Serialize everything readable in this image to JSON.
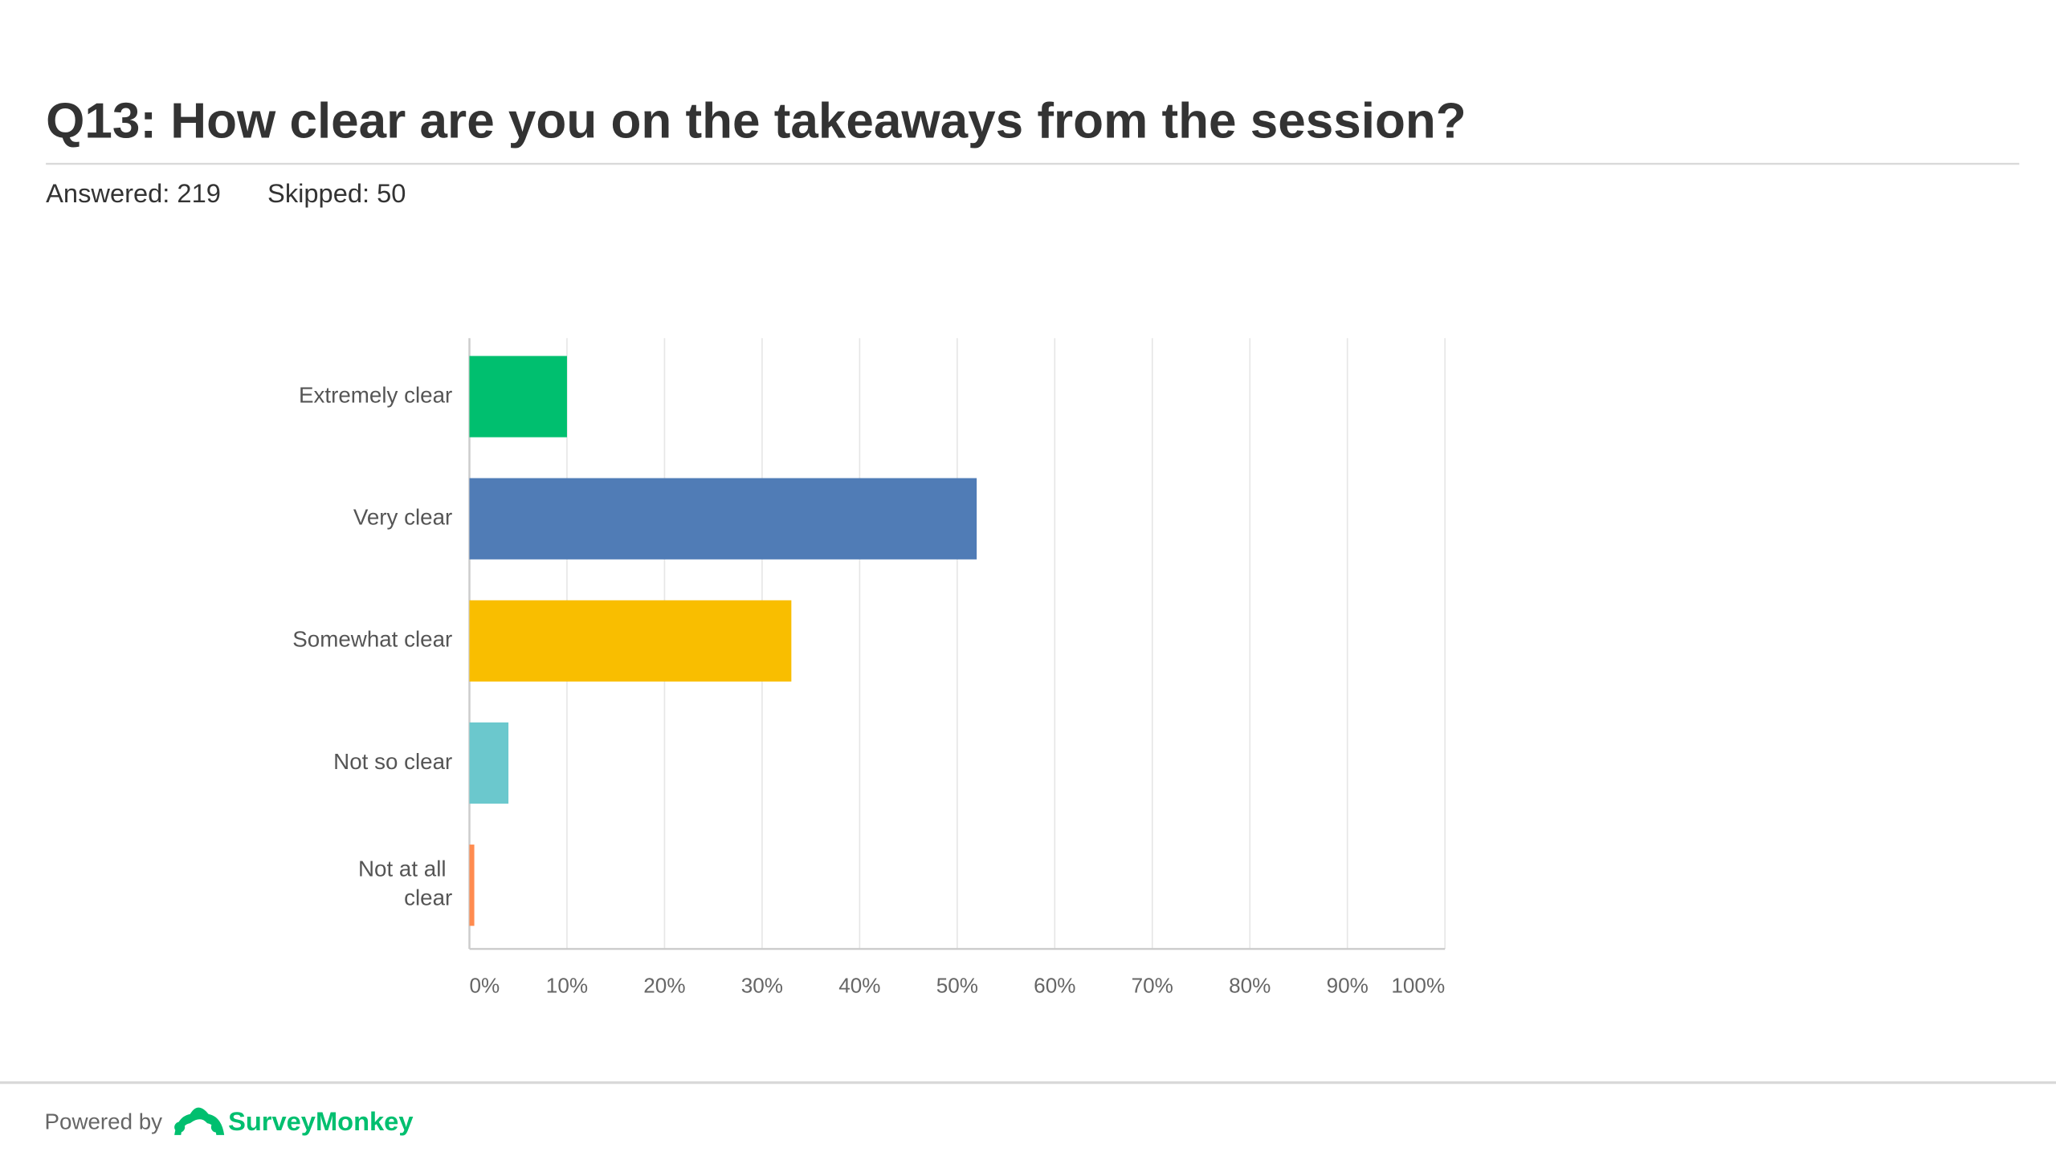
{
  "chart_data": {
    "type": "bar",
    "orientation": "horizontal",
    "title": "Q13: How clear are you on the takeaways from the session?",
    "answered": "Answered: 219",
    "skipped": "Skipped: 50",
    "categories": [
      "Extremely clear",
      "Very clear",
      "Somewhat clear",
      "Not so clear",
      "Not at all clear"
    ],
    "values": [
      10,
      52,
      33,
      4,
      0.5
    ],
    "colors": [
      "#00bf6f",
      "#507cb6",
      "#f9be00",
      "#6bc8cd",
      "#ff8b4f"
    ],
    "xlim": [
      0,
      100
    ],
    "xticks": [
      {
        "value": 0,
        "label": "0%"
      },
      {
        "value": 10,
        "label": "10%"
      },
      {
        "value": 20,
        "label": "20%"
      },
      {
        "value": 30,
        "label": "30%"
      },
      {
        "value": 40,
        "label": "40%"
      },
      {
        "value": 50,
        "label": "50%"
      },
      {
        "value": 60,
        "label": "60%"
      },
      {
        "value": 70,
        "label": "70%"
      },
      {
        "value": 80,
        "label": "80%"
      },
      {
        "value": 90,
        "label": "90%"
      },
      {
        "value": 100,
        "label": "100%"
      }
    ],
    "grid": true
  },
  "footer": {
    "powered_by": "Powered by",
    "brand": "SurveyMonkey"
  }
}
